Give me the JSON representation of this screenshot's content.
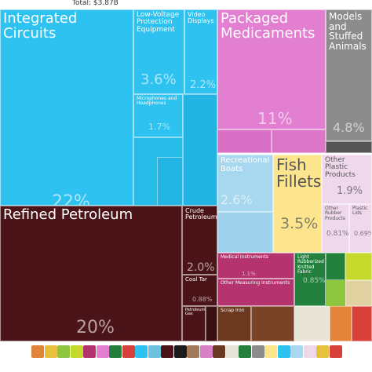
{
  "chart_data": {
    "type": "treemap",
    "title": "Total: $3.87B",
    "items": [
      {
        "label": "Integrated Circuits",
        "value": 22,
        "value_label": "22%",
        "color": "#2dc2ef"
      },
      {
        "label": "Low-Voltage Protection Equipment",
        "value": 3.6,
        "value_label": "3.6%",
        "color": "#2dc2ef"
      },
      {
        "label": "Video Displays",
        "value": 2.2,
        "value_label": "2.2%",
        "color": "#2dc2ef"
      },
      {
        "label": "Microphones and Headphones",
        "value": 1.7,
        "value_label": "1.7%",
        "color": "#2dc2ef"
      },
      {
        "label": "Refined Petroleum",
        "value": 20,
        "value_label": "20%",
        "color": "#4b1418"
      },
      {
        "label": "Crude Petroleum",
        "value": 2.0,
        "value_label": "2.0%",
        "color": "#4b1418"
      },
      {
        "label": "Coal Tar",
        "value": 0.88,
        "value_label": "0.88%",
        "color": "#4b1418"
      },
      {
        "label": "Packaged Medicaments",
        "value": 11,
        "value_label": "11%",
        "color": "#e27fd0"
      },
      {
        "label": "Models and Stuffed Animals",
        "value": 4.8,
        "value_label": "4.8%",
        "color": "#8c8c8c"
      },
      {
        "label": "Recreational Boats",
        "value": 2.6,
        "value_label": "2.6%",
        "color": "#a8d8ef"
      },
      {
        "label": "Fish Fillets",
        "value": 3.5,
        "value_label": "3.5%",
        "color": "#fde58e"
      },
      {
        "label": "Other Plastic Products",
        "value": 1.9,
        "value_label": "1.9%",
        "color": "#efd7ec"
      },
      {
        "label": "Other Rubber Products",
        "value": 0.81,
        "value_label": "0.81%",
        "color": "#efd7ec"
      },
      {
        "label": "Plastic Lids",
        "value": 0.69,
        "value_label": "0.69%",
        "color": "#efd7ec"
      },
      {
        "label": "Medical Instruments",
        "value": 1.1,
        "value_label": "1.1%",
        "color": "#b5346f"
      },
      {
        "label": "Other Measuring Instruments",
        "value": 0.9,
        "color": "#b5346f"
      },
      {
        "label": "Light Rubberized Knitted Fabric",
        "value": 0.85,
        "value_label": "0.85%",
        "color": "#23803d"
      },
      {
        "label": "Scrap Iron",
        "value": 0.6,
        "color": "#6b3820"
      },
      {
        "label": "Petroleum Gas",
        "value": 0.5,
        "color": "#4b1418"
      }
    ]
  }
}
